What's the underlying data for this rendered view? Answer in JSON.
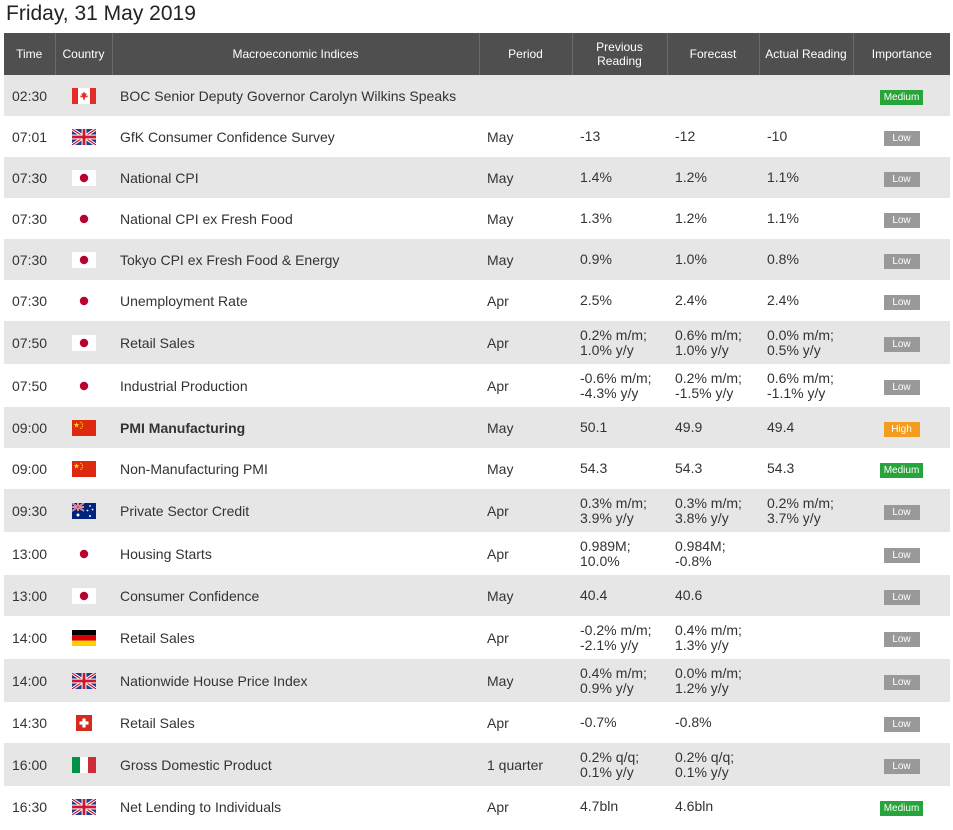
{
  "page_title": "Friday, 31 May 2019",
  "columns": {
    "time": "Time",
    "country": "Country",
    "indices": "Macroeconomic Indices",
    "period": "Period",
    "previous_1": "Previous",
    "previous_2": "Reading",
    "forecast": "Forecast",
    "actual": "Actual Reading",
    "importance": "Importance"
  },
  "colors": {
    "header_bg": "#4f4f4f",
    "row_alt": "#e6e6e6",
    "badge_low": "#999999",
    "badge_medium": "#27a43a",
    "badge_high": "#f39c1f",
    "actual_worse": "#e8302a",
    "actual_better": "#2e9b3b"
  },
  "rows": [
    {
      "time": "02:30",
      "flag": "canada-flag-icon",
      "country": "ca",
      "name": "BOC Senior Deputy Governor Carolyn Wilkins Speaks",
      "bold": false,
      "period": "",
      "prev": [
        ""
      ],
      "forecast": [
        ""
      ],
      "actual": [
        ""
      ],
      "actual_color": "",
      "importance": "Medium",
      "importance_class": "medium"
    },
    {
      "time": "07:01",
      "flag": "uk-flag-icon",
      "country": "uk",
      "name": "GfK Consumer Confidence Survey",
      "bold": false,
      "period": "May",
      "prev": [
        "-13"
      ],
      "forecast": [
        "-12"
      ],
      "actual": [
        "-10"
      ],
      "actual_color": "green",
      "importance": "Low",
      "importance_class": "low"
    },
    {
      "time": "07:30",
      "flag": "japan-flag-icon",
      "country": "jp",
      "name": "National CPI",
      "bold": false,
      "period": "May",
      "prev": [
        "1.4%"
      ],
      "forecast": [
        "1.2%"
      ],
      "actual": [
        "1.1%"
      ],
      "actual_color": "red",
      "importance": "Low",
      "importance_class": "low"
    },
    {
      "time": "07:30",
      "flag": "japan-flag-icon",
      "country": "jp",
      "name": "National CPI ex Fresh Food",
      "bold": false,
      "period": "May",
      "prev": [
        "1.3%"
      ],
      "forecast": [
        "1.2%"
      ],
      "actual": [
        "1.1%"
      ],
      "actual_color": "red",
      "importance": "Low",
      "importance_class": "low"
    },
    {
      "time": "07:30",
      "flag": "japan-flag-icon",
      "country": "jp",
      "name": "Tokyo CPI ex Fresh Food & Energy",
      "bold": false,
      "period": "May",
      "prev": [
        "0.9%"
      ],
      "forecast": [
        "1.0%"
      ],
      "actual": [
        "0.8%"
      ],
      "actual_color": "red",
      "importance": "Low",
      "importance_class": "low"
    },
    {
      "time": "07:30",
      "flag": "japan-flag-icon",
      "country": "jp",
      "name": "Unemployment Rate",
      "bold": false,
      "period": "Apr",
      "prev": [
        "2.5%"
      ],
      "forecast": [
        "2.4%"
      ],
      "actual": [
        "2.4%"
      ],
      "actual_color": "",
      "importance": "Low",
      "importance_class": "low"
    },
    {
      "time": "07:50",
      "flag": "japan-flag-icon",
      "country": "jp",
      "name": "Retail Sales",
      "bold": false,
      "period": "Apr",
      "prev": [
        "0.2% m/m;",
        "1.0% y/y"
      ],
      "forecast": [
        "0.6% m/m;",
        "1.0% y/y"
      ],
      "actual": [
        "0.0% m/m;",
        "0.5% y/y"
      ],
      "actual_color": "red",
      "importance": "Low",
      "importance_class": "low"
    },
    {
      "time": "07:50",
      "flag": "japan-flag-icon",
      "country": "jp",
      "name": "Industrial Production",
      "bold": false,
      "period": "Apr",
      "prev": [
        "-0.6% m/m;",
        "-4.3% y/y"
      ],
      "forecast": [
        "0.2% m/m;",
        "-1.5% y/y"
      ],
      "actual": [
        "0.6% m/m;",
        "-1.1% y/y"
      ],
      "actual_color": "green",
      "importance": "Low",
      "importance_class": "low"
    },
    {
      "time": "09:00",
      "flag": "china-flag-icon",
      "country": "cn",
      "name": "PMI Manufacturing",
      "bold": true,
      "period": "May",
      "prev": [
        "50.1"
      ],
      "forecast": [
        "49.9"
      ],
      "actual": [
        "49.4"
      ],
      "actual_color": "red",
      "importance": "High",
      "importance_class": "high"
    },
    {
      "time": "09:00",
      "flag": "china-flag-icon",
      "country": "cn",
      "name": "Non-Manufacturing PMI",
      "bold": false,
      "period": "May",
      "prev": [
        "54.3"
      ],
      "forecast": [
        "54.3"
      ],
      "actual": [
        "54.3"
      ],
      "actual_color": "",
      "importance": "Medium",
      "importance_class": "medium"
    },
    {
      "time": "09:30",
      "flag": "australia-flag-icon",
      "country": "au",
      "name": "Private Sector Credit",
      "bold": false,
      "period": "Apr",
      "prev": [
        "0.3% m/m;",
        "3.9% y/y"
      ],
      "forecast": [
        "0.3% m/m;",
        "3.8% y/y"
      ],
      "actual": [
        "0.2% m/m;",
        "3.7% y/y"
      ],
      "actual_color": "red",
      "importance": "Low",
      "importance_class": "low"
    },
    {
      "time": "13:00",
      "flag": "japan-flag-icon",
      "country": "jp",
      "name": "Housing Starts",
      "bold": false,
      "period": "Apr",
      "prev": [
        "0.989M;",
        "10.0%"
      ],
      "forecast": [
        "0.984M;",
        "-0.8%"
      ],
      "actual": [
        ""
      ],
      "actual_color": "",
      "importance": "Low",
      "importance_class": "low"
    },
    {
      "time": "13:00",
      "flag": "japan-flag-icon",
      "country": "jp",
      "name": "Consumer Confidence",
      "bold": false,
      "period": "May",
      "prev": [
        "40.4"
      ],
      "forecast": [
        "40.6"
      ],
      "actual": [
        ""
      ],
      "actual_color": "",
      "importance": "Low",
      "importance_class": "low"
    },
    {
      "time": "14:00",
      "flag": "germany-flag-icon",
      "country": "de",
      "name": "Retail Sales",
      "bold": false,
      "period": "Apr",
      "prev": [
        "-0.2% m/m;",
        "-2.1% y/y"
      ],
      "forecast": [
        "0.4% m/m;",
        "1.3% y/y"
      ],
      "actual": [
        ""
      ],
      "actual_color": "",
      "importance": "Low",
      "importance_class": "low"
    },
    {
      "time": "14:00",
      "flag": "uk-flag-icon",
      "country": "uk",
      "name": "Nationwide House Price Index",
      "bold": false,
      "period": "May",
      "prev": [
        "0.4% m/m;",
        "0.9% y/y"
      ],
      "forecast": [
        "0.0% m/m;",
        "1.2% y/y"
      ],
      "actual": [
        ""
      ],
      "actual_color": "",
      "importance": "Low",
      "importance_class": "low"
    },
    {
      "time": "14:30",
      "flag": "switzerland-flag-icon",
      "country": "ch",
      "name": "Retail Sales",
      "bold": false,
      "period": "Apr",
      "prev": [
        "-0.7%"
      ],
      "forecast": [
        "-0.8%"
      ],
      "actual": [
        ""
      ],
      "actual_color": "",
      "importance": "Low",
      "importance_class": "low"
    },
    {
      "time": "16:00",
      "flag": "italy-flag-icon",
      "country": "it",
      "name": "Gross Domestic Product",
      "bold": false,
      "period": "1 quarter",
      "prev": [
        "0.2% q/q;",
        "0.1% y/y"
      ],
      "forecast": [
        "0.2% q/q;",
        "0.1% y/y"
      ],
      "actual": [
        ""
      ],
      "actual_color": "",
      "importance": "Low",
      "importance_class": "low"
    },
    {
      "time": "16:30",
      "flag": "uk-flag-icon",
      "country": "uk",
      "name": "Net Lending to Individuals",
      "bold": false,
      "period": "Apr",
      "prev": [
        "4.7bln"
      ],
      "forecast": [
        "4.6bln"
      ],
      "actual": [
        ""
      ],
      "actual_color": "",
      "importance": "Medium",
      "importance_class": "medium"
    }
  ]
}
